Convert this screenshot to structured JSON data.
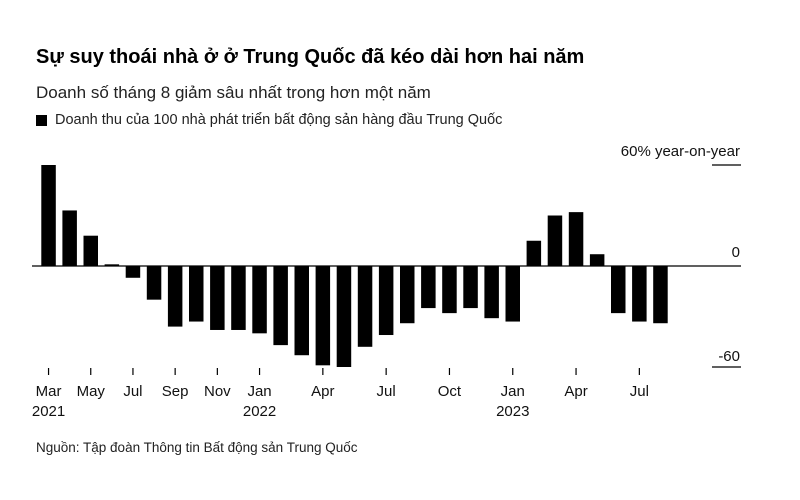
{
  "title": "Sự suy thoái nhà ở ở Trung Quốc đã kéo dài hơn hai năm",
  "subtitle": "Doanh số tháng 8 giảm sâu nhất trong hơn một năm",
  "legend": {
    "label": "Doanh thu của 100 nhà phát triển bất động sản hàng đầu Trung Quốc"
  },
  "source": "Nguồn: Tập đoàn Thông tin Bất động sản Trung Quốc",
  "colors": {
    "bar": "#000000",
    "baseline": "#000000",
    "text": "#111111"
  },
  "chart_data": {
    "type": "bar",
    "categories": [
      "2021-03",
      "2021-04",
      "2021-05",
      "2021-06",
      "2021-07",
      "2021-08",
      "2021-09",
      "2021-10",
      "2021-11",
      "2021-12",
      "2022-01",
      "2022-02",
      "2022-03",
      "2022-04",
      "2022-05",
      "2022-06",
      "2022-07",
      "2022-08",
      "2022-09",
      "2022-10",
      "2022-11",
      "2022-12",
      "2023-01",
      "2023-02",
      "2023-03",
      "2023-04",
      "2023-05",
      "2023-06",
      "2023-07",
      "2023-08"
    ],
    "values": [
      60,
      33,
      18,
      1,
      -7,
      -20,
      -36,
      -33,
      -38,
      -38,
      -40,
      -47,
      -53,
      -59,
      -60,
      -48,
      -41,
      -34,
      -25,
      -28,
      -25,
      -31,
      -33,
      15,
      30,
      32,
      7,
      -28,
      -33,
      -34
    ],
    "ylim": [
      -60,
      60
    ],
    "ytick_labels": [
      {
        "value": 60,
        "label": "60% year-on-year"
      },
      {
        "value": 0,
        "label": "0"
      },
      {
        "value": -60,
        "label": "-60"
      }
    ],
    "xtick_labels": [
      {
        "index": 0,
        "label": "Mar",
        "year": "2021"
      },
      {
        "index": 2,
        "label": "May"
      },
      {
        "index": 4,
        "label": "Jul"
      },
      {
        "index": 6,
        "label": "Sep"
      },
      {
        "index": 8,
        "label": "Nov"
      },
      {
        "index": 10,
        "label": "Jan",
        "year": "2022"
      },
      {
        "index": 13,
        "label": "Apr"
      },
      {
        "index": 16,
        "label": "Jul"
      },
      {
        "index": 19,
        "label": "Oct"
      },
      {
        "index": 22,
        "label": "Jan",
        "year": "2023"
      },
      {
        "index": 25,
        "label": "Apr"
      },
      {
        "index": 28,
        "label": "Jul"
      }
    ],
    "ytick_position": "right",
    "grid": false
  }
}
